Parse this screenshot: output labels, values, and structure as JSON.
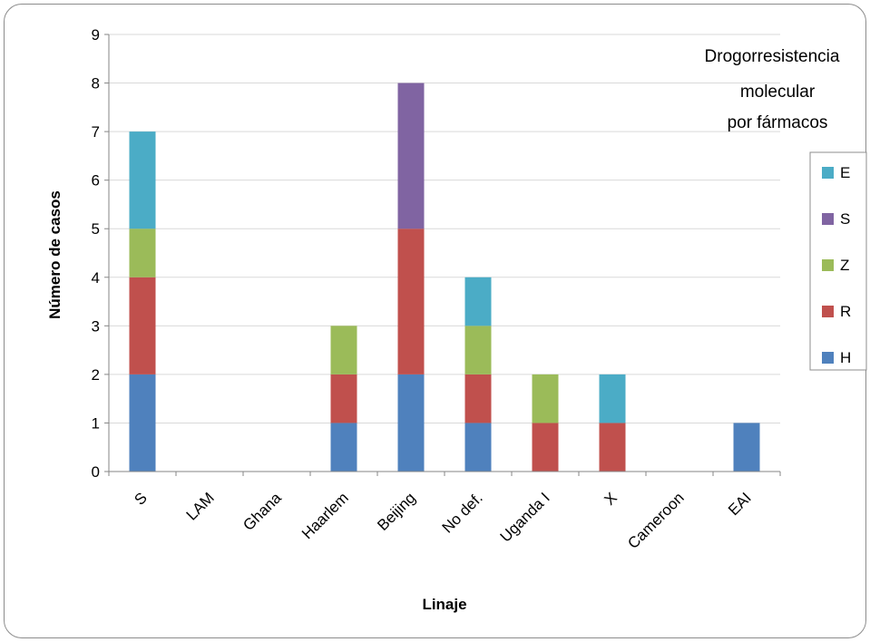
{
  "chart_data": {
    "type": "bar",
    "stacked": true,
    "categories": [
      "S",
      "LAM",
      "Ghana",
      "Haarlem",
      "Beijing",
      "No def.",
      "Uganda I",
      "X",
      "Cameroon",
      "EAI"
    ],
    "series": [
      {
        "name": "H",
        "color": "#4f81bd",
        "values": [
          2,
          0,
          0,
          1,
          2,
          1,
          0,
          0,
          0,
          1
        ]
      },
      {
        "name": "R",
        "color": "#c0504d",
        "values": [
          2,
          0,
          0,
          1,
          3,
          1,
          1,
          1,
          0,
          0
        ]
      },
      {
        "name": "Z",
        "color": "#9bbb59",
        "values": [
          1,
          0,
          0,
          1,
          0,
          1,
          1,
          0,
          0,
          0
        ]
      },
      {
        "name": "S",
        "color": "#8064a2",
        "values": [
          0,
          0,
          0,
          0,
          3,
          0,
          0,
          0,
          0,
          0
        ]
      },
      {
        "name": "E",
        "color": "#4bacc6",
        "values": [
          2,
          0,
          0,
          0,
          0,
          1,
          0,
          1,
          0,
          0
        ]
      }
    ],
    "xlabel": "Linaje",
    "ylabel": "Número de casos",
    "ylim": [
      0,
      9
    ],
    "yticks": [
      "0",
      "1",
      "2",
      "3",
      "4",
      "5",
      "6",
      "7",
      "8",
      "9"
    ],
    "grid": true,
    "legend": {
      "title_lines": [
        "Drogorresistencia",
        "molecular",
        "por fármacos"
      ],
      "placement": "right",
      "order": [
        "E",
        "S",
        "Z",
        "R",
        "H"
      ]
    }
  }
}
